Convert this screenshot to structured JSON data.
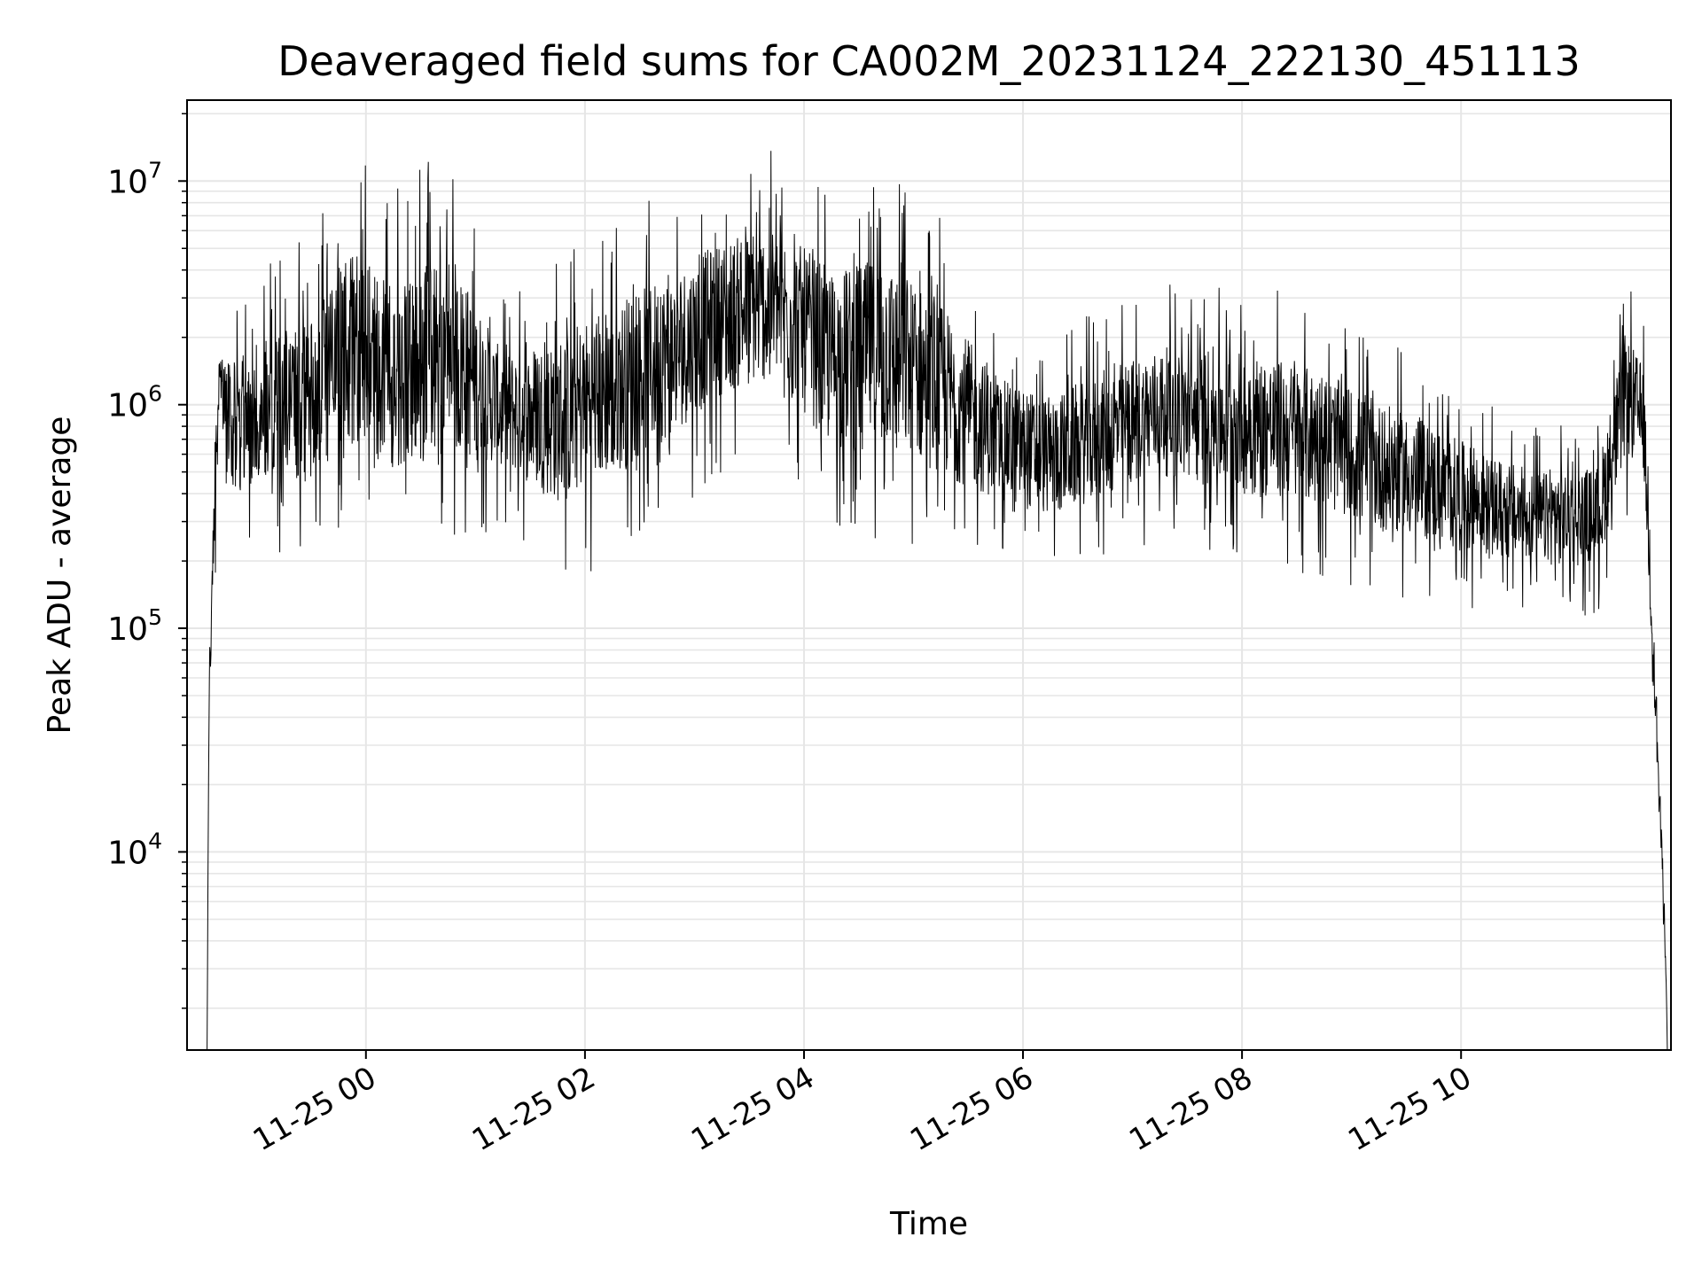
{
  "chart_data": {
    "type": "line",
    "title": "Deaveraged field sums for CA002M_20231124_222130_451113",
    "xlabel": "Time",
    "ylabel": "Peak ADU - average",
    "yscale": "log",
    "ylim": [
      1300,
      23000000
    ],
    "xlim": [
      "2023-11-24T22:22:00",
      "2023-11-25T11:55:00"
    ],
    "grid": true,
    "legend": "none",
    "line_color": "#000000",
    "grid_color": "#e6e6e6",
    "x_ticks": [
      {
        "value": "2023-11-25T00:00:00",
        "label": "11-25 00"
      },
      {
        "value": "2023-11-25T02:00:00",
        "label": "11-25 02"
      },
      {
        "value": "2023-11-25T04:00:00",
        "label": "11-25 04"
      },
      {
        "value": "2023-11-25T06:00:00",
        "label": "11-25 06"
      },
      {
        "value": "2023-11-25T08:00:00",
        "label": "11-25 08"
      },
      {
        "value": "2023-11-25T10:00:00",
        "label": "11-25 10"
      }
    ],
    "y_ticks": [
      {
        "value": 10000,
        "base": "10",
        "exp": "4"
      },
      {
        "value": 100000,
        "base": "10",
        "exp": "5"
      },
      {
        "value": 1000000,
        "base": "10",
        "exp": "6"
      },
      {
        "value": 10000000,
        "base": "10",
        "exp": "7"
      }
    ],
    "series": [
      {
        "envelope": [
          {
            "t": "2023-11-24T22:33:00",
            "lo": 1300,
            "hi": 1300
          },
          {
            "t": "2023-11-24T22:34:00",
            "lo": 20000,
            "hi": 80000
          },
          {
            "t": "2023-11-24T22:36:00",
            "lo": 60000,
            "hi": 900000
          },
          {
            "t": "2023-11-24T22:40:00",
            "lo": 900000,
            "hi": 2000000
          },
          {
            "t": "2023-11-24T22:45:00",
            "lo": 200000,
            "hi": 3000000
          },
          {
            "t": "2023-11-24T23:00:00",
            "lo": 200000,
            "hi": 4000000
          },
          {
            "t": "2023-11-24T23:30:00",
            "lo": 200000,
            "hi": 6000000
          },
          {
            "t": "2023-11-24T23:50:00",
            "lo": 250000,
            "hi": 14000000
          },
          {
            "t": "2023-11-25T00:15:00",
            "lo": 200000,
            "hi": 9000000
          },
          {
            "t": "2023-11-25T00:45:00",
            "lo": 200000,
            "hi": 15000000
          },
          {
            "t": "2023-11-25T01:15:00",
            "lo": 300000,
            "hi": 3000000
          },
          {
            "t": "2023-11-25T01:45:00",
            "lo": 150000,
            "hi": 5000000
          },
          {
            "t": "2023-11-25T02:15:00",
            "lo": 200000,
            "hi": 7000000
          },
          {
            "t": "2023-11-25T02:45:00",
            "lo": 300000,
            "hi": 9000000
          },
          {
            "t": "2023-11-25T03:15:00",
            "lo": 500000,
            "hi": 12000000
          },
          {
            "t": "2023-11-25T03:45:00",
            "lo": 600000,
            "hi": 14000000
          },
          {
            "t": "2023-11-25T04:15:00",
            "lo": 250000,
            "hi": 10000000
          },
          {
            "t": "2023-11-25T04:45:00",
            "lo": 250000,
            "hi": 12000000
          },
          {
            "t": "2023-11-25T05:15:00",
            "lo": 200000,
            "hi": 7000000
          },
          {
            "t": "2023-11-25T05:45:00",
            "lo": 200000,
            "hi": 2500000
          },
          {
            "t": "2023-11-25T06:15:00",
            "lo": 170000,
            "hi": 2000000
          },
          {
            "t": "2023-11-25T06:45:00",
            "lo": 200000,
            "hi": 2800000
          },
          {
            "t": "2023-11-25T07:15:00",
            "lo": 250000,
            "hi": 3500000
          },
          {
            "t": "2023-11-25T07:45:00",
            "lo": 200000,
            "hi": 3800000
          },
          {
            "t": "2023-11-25T08:15:00",
            "lo": 180000,
            "hi": 3500000
          },
          {
            "t": "2023-11-25T08:45:00",
            "lo": 170000,
            "hi": 2800000
          },
          {
            "t": "2023-11-25T09:15:00",
            "lo": 140000,
            "hi": 2000000
          },
          {
            "t": "2023-11-25T09:45:00",
            "lo": 130000,
            "hi": 1500000
          },
          {
            "t": "2023-11-25T10:15:00",
            "lo": 120000,
            "hi": 1000000
          },
          {
            "t": "2023-11-25T10:45:00",
            "lo": 120000,
            "hi": 800000
          },
          {
            "t": "2023-11-25T11:15:00",
            "lo": 110000,
            "hi": 900000
          },
          {
            "t": "2023-11-25T11:30:00",
            "lo": 300000,
            "hi": 4000000
          },
          {
            "t": "2023-11-25T11:40:00",
            "lo": 300000,
            "hi": 2500000
          },
          {
            "t": "2023-11-25T11:52:00",
            "lo": 3000,
            "hi": 5000
          },
          {
            "t": "2023-11-25T11:53:00",
            "lo": 1300,
            "hi": 1300
          }
        ]
      }
    ]
  }
}
